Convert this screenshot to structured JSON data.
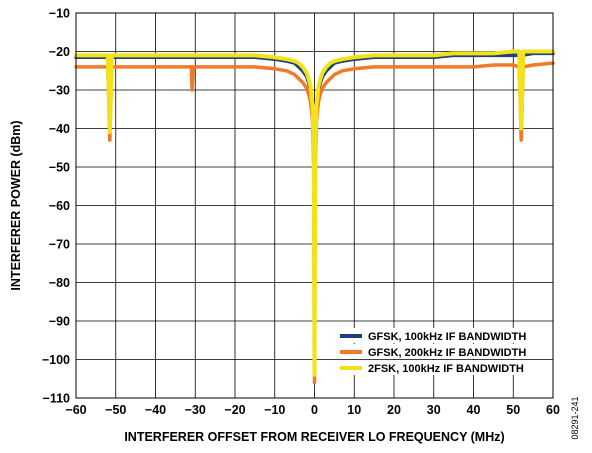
{
  "chart_data": {
    "type": "line",
    "xlabel": "INTERFERER OFFSET FROM RECEIVER LO FREQUENCY (MHz)",
    "ylabel": "INTERFERER POWER (dBm)",
    "xlim": [
      -60,
      60
    ],
    "ylim": [
      -110,
      -10
    ],
    "x_ticks": [
      -60,
      -50,
      -40,
      -30,
      -20,
      -10,
      0,
      10,
      20,
      30,
      40,
      50,
      60
    ],
    "y_ticks": [
      -10,
      -20,
      -30,
      -40,
      -50,
      -60,
      -70,
      -80,
      -90,
      -100,
      -110
    ],
    "x_tick_labels": [
      "−60",
      "−50",
      "−40",
      "−30",
      "−20",
      "−10",
      "0",
      "10",
      "20",
      "30",
      "40",
      "50",
      "60"
    ],
    "y_tick_labels": [
      "−10",
      "−20",
      "−30",
      "−40",
      "−50",
      "−60",
      "−70",
      "−80",
      "−90",
      "−100",
      "−110"
    ],
    "grid": true,
    "legend_position": "bottom-right",
    "figure_id": "08291-241",
    "series": [
      {
        "name": "GFSK, 100kHz IF BANDWIDTH",
        "color": "#1f3f7a",
        "x": [
          -60,
          -55,
          -52,
          -50,
          -45,
          -40,
          -35,
          -31,
          -30,
          -25,
          -20,
          -15,
          -10,
          -7,
          -5,
          -4,
          -3,
          -2,
          -1.5,
          -1,
          -0.5,
          -0.2,
          0,
          0.2,
          0.5,
          1,
          1.5,
          2,
          3,
          4,
          5,
          7,
          10,
          15,
          20,
          25,
          30,
          35,
          40,
          45,
          50,
          52,
          55,
          60
        ],
        "y": [
          -21.5,
          -21.5,
          -21.5,
          -21.5,
          -21.5,
          -21.5,
          -21.5,
          -21.5,
          -21.5,
          -21.5,
          -21.5,
          -21.5,
          -22,
          -22.5,
          -23,
          -24,
          -25,
          -26.5,
          -28,
          -30,
          -35,
          -45,
          -75,
          -45,
          -35,
          -30,
          -28,
          -26.5,
          -25,
          -24,
          -23,
          -22.5,
          -22,
          -21.5,
          -21.5,
          -21.5,
          -21.5,
          -21,
          -21,
          -21,
          -21,
          -21,
          -20.5,
          -20.5
        ]
      },
      {
        "name": "GFSK, 200kHz IF BANDWIDTH",
        "color": "#f07a28",
        "x": [
          -60,
          -55,
          -52,
          -51.5,
          -51,
          -50,
          -45,
          -40,
          -35,
          -31,
          -30.8,
          -30.5,
          -30,
          -25,
          -20,
          -15,
          -10,
          -7,
          -5,
          -4,
          -3,
          -2,
          -1.5,
          -1,
          -0.5,
          -0.2,
          0,
          0.2,
          0.5,
          1,
          1.5,
          2,
          3,
          4,
          5,
          7,
          10,
          15,
          20,
          25,
          30,
          35,
          40,
          45,
          50,
          51.5,
          52,
          52.5,
          55,
          60
        ],
        "y": [
          -24,
          -24,
          -24,
          -43,
          -24,
          -24,
          -24,
          -24,
          -24,
          -24,
          -30,
          -24,
          -24,
          -24,
          -24,
          -24,
          -24.5,
          -25,
          -26,
          -27,
          -28,
          -29.5,
          -31,
          -33,
          -38,
          -50,
          -106,
          -50,
          -38,
          -33,
          -31,
          -29.5,
          -28,
          -27,
          -26,
          -25,
          -24.5,
          -24,
          -24,
          -24,
          -24,
          -24,
          -24,
          -23.5,
          -23.5,
          -24,
          -43,
          -24,
          -23.5,
          -23
        ]
      },
      {
        "name": "2FSK, 100kHz IF BANDWIDTH",
        "color": "#f2e21a",
        "x": [
          -60,
          -55,
          -52,
          -51.5,
          -51,
          -50,
          -45,
          -40,
          -35,
          -30,
          -25,
          -20,
          -15,
          -10,
          -7,
          -5,
          -4,
          -3,
          -2,
          -1.5,
          -1,
          -0.5,
          -0.2,
          0,
          0.2,
          0.5,
          1,
          1.5,
          2,
          3,
          4,
          5,
          7,
          10,
          15,
          20,
          25,
          30,
          35,
          40,
          45,
          50,
          51.5,
          52,
          52.5,
          55,
          60
        ],
        "y": [
          -21,
          -21,
          -21,
          -41,
          -21,
          -21,
          -21,
          -21,
          -21,
          -21,
          -21,
          -21,
          -21,
          -21.5,
          -22,
          -22.5,
          -23,
          -24,
          -25.5,
          -27,
          -29,
          -34,
          -44,
          -104,
          -44,
          -34,
          -29,
          -27,
          -25.5,
          -24,
          -23,
          -22.5,
          -22,
          -21.5,
          -21,
          -21,
          -21,
          -21,
          -20.5,
          -20.5,
          -20.5,
          -20,
          -20,
          -40,
          -20,
          -20,
          -20
        ]
      }
    ]
  }
}
